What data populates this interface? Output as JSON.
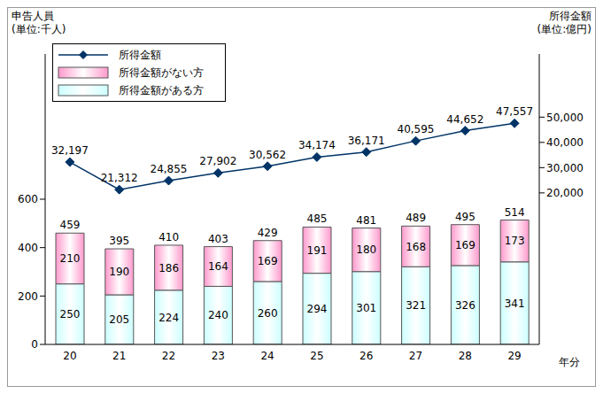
{
  "chart_data": {
    "type": "bar",
    "stacked": true,
    "data_labels": true,
    "legend": "upper left",
    "y_label": [
      "申告人員",
      "(単位:千人)"
    ],
    "y2_label": [
      "所得金額",
      "(単位:億円)"
    ],
    "x_label": "年分",
    "categories": [
      "20",
      "21",
      "22",
      "23",
      "24",
      "25",
      "26",
      "27",
      "28",
      "29"
    ],
    "ylim": [
      0,
      1200
    ],
    "yticks": [
      0,
      200,
      400,
      600
    ],
    "y2lim": [
      -40000,
      75000
    ],
    "y2ticks": [
      {
        "value": 20000,
        "label": "20,000"
      },
      {
        "value": 30000,
        "label": "30,000"
      },
      {
        "value": 40000,
        "label": "40,000"
      },
      {
        "value": 50000,
        "label": "50,000"
      }
    ],
    "totals": [
      459,
      395,
      410,
      403,
      429,
      485,
      481,
      489,
      495,
      514
    ],
    "series": [
      {
        "name": "所得金額",
        "type": "line",
        "axis": "y2",
        "color": "#003366",
        "marker": "diamond",
        "values": [
          32197,
          21312,
          24855,
          27902,
          30562,
          34174,
          36171,
          40595,
          44652,
          47557
        ],
        "value_labels": [
          "32,197",
          "21,312",
          "24,855",
          "27,902",
          "30,562",
          "34,174",
          "36,171",
          "40,595",
          "44,652",
          "47,557"
        ]
      },
      {
        "name": "所得金額がない方",
        "type": "bar",
        "color": "#ff99cc",
        "values": [
          210,
          190,
          186,
          164,
          169,
          191,
          180,
          168,
          169,
          173
        ]
      },
      {
        "name": "所得金額がある方",
        "type": "bar",
        "color": "#ccffff",
        "values": [
          250,
          205,
          224,
          240,
          260,
          294,
          301,
          321,
          326,
          341
        ]
      }
    ]
  }
}
